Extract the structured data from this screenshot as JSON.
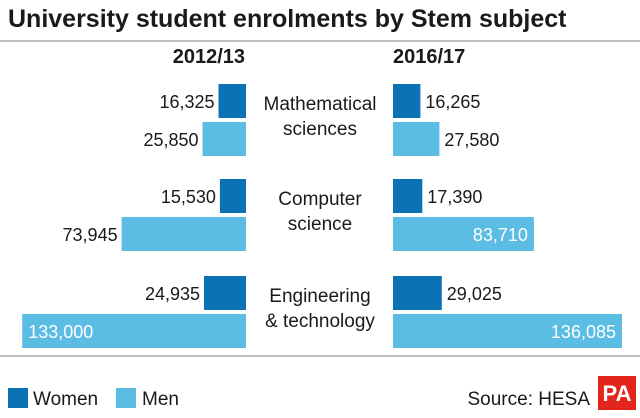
{
  "chart_data": {
    "type": "bar",
    "title": "University student enrolments by Stem subject",
    "periods": [
      "2012/13",
      "2016/17"
    ],
    "categories": [
      {
        "lines": [
          "Mathematical",
          "sciences"
        ]
      },
      {
        "lines": [
          "Computer",
          "science"
        ]
      },
      {
        "lines": [
          "Engineering",
          "& technology"
        ]
      }
    ],
    "series": [
      {
        "name": "Women",
        "color": "#0b72b5",
        "values": [
          [
            16325,
            16265
          ],
          [
            15530,
            17390
          ],
          [
            24935,
            29025
          ]
        ]
      },
      {
        "name": "Men",
        "color": "#5bbce4",
        "values": [
          [
            25850,
            27580
          ],
          [
            73945,
            83710
          ],
          [
            133000,
            136085
          ]
        ]
      }
    ],
    "value_labels": {
      "Women": [
        [
          "16,325",
          "16,265"
        ],
        [
          "15,530",
          "17,390"
        ],
        [
          "24,935",
          "29,025"
        ]
      ],
      "Men": [
        [
          "25,850",
          "27,580"
        ],
        [
          "73,945",
          "83,710"
        ],
        [
          "133,000",
          "136,085"
        ]
      ]
    },
    "legend_position": "bottom-left",
    "grid": false
  },
  "source": "Source: HESA",
  "logo": {
    "text": "PA",
    "color": "#e3261c"
  }
}
